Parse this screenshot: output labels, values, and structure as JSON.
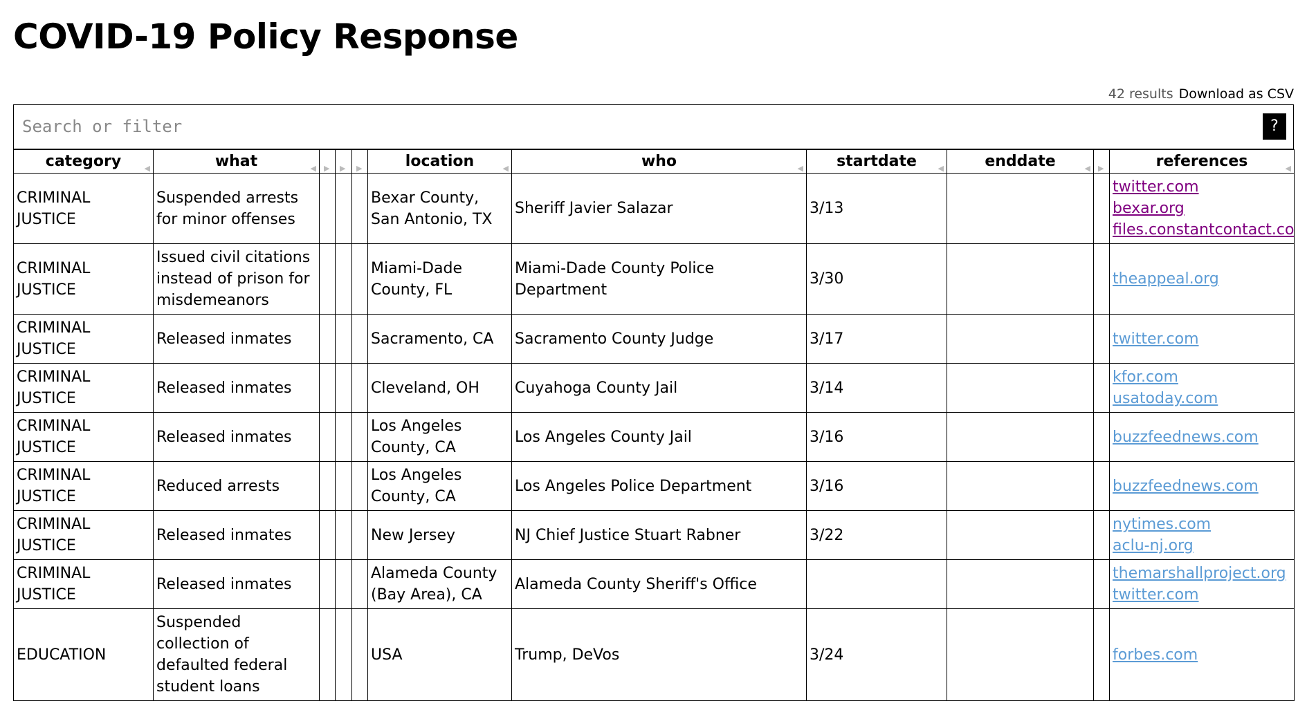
{
  "header": {
    "title": "COVID-19 Policy Response"
  },
  "toolbar": {
    "count": "42 results",
    "download": "Download as CSV"
  },
  "search": {
    "placeholder": "Search or filter",
    "help": "?"
  },
  "table": {
    "columns": [
      "category",
      "what",
      "location",
      "who",
      "startdate",
      "enddate",
      "references"
    ],
    "rows": [
      [
        "CRIMINAL JUSTICE",
        "Suspended arrests for minor offenses",
        "Bexar County, San Antonio, TX",
        "Sheriff Javier Salazar",
        "3/13",
        null,
        [
          {
            "text": "twitter.com",
            "visited": true
          },
          {
            "text": "bexar.org",
            "visited": true
          },
          {
            "text": "files.constantcontact.com",
            "visited": true
          }
        ]
      ],
      [
        "CRIMINAL JUSTICE",
        "Issued civil citations instead of prison for misdemeanors",
        "Miami-Dade County, FL",
        "Miami-Dade County Police Department",
        "3/30",
        null,
        [
          {
            "text": "theappeal.org",
            "visited": false
          }
        ]
      ],
      [
        "CRIMINAL JUSTICE",
        "Released inmates",
        "Sacramento, CA",
        "Sacramento County Judge",
        "3/17",
        null,
        [
          {
            "text": "twitter.com",
            "visited": false
          }
        ]
      ],
      [
        "CRIMINAL JUSTICE",
        "Released inmates",
        "Cleveland, OH",
        "Cuyahoga County Jail",
        "3/14",
        null,
        [
          {
            "text": "kfor.com",
            "visited": false
          },
          {
            "text": "usatoday.com",
            "visited": false
          }
        ]
      ],
      [
        "CRIMINAL JUSTICE",
        "Released inmates",
        "Los Angeles County, CA",
        "Los Angeles County Jail",
        "3/16",
        null,
        [
          {
            "text": "buzzfeednews.com",
            "visited": false
          }
        ]
      ],
      [
        "CRIMINAL JUSTICE",
        "Reduced arrests",
        "Los Angeles County, CA",
        "Los Angeles Police Department",
        "3/16",
        null,
        [
          {
            "text": "buzzfeednews.com",
            "visited": false
          }
        ]
      ],
      [
        "CRIMINAL JUSTICE",
        "Released inmates",
        "New Jersey",
        "NJ Chief Justice Stuart Rabner",
        "3/22",
        null,
        [
          {
            "text": "nytimes.com",
            "visited": false
          },
          {
            "text": "aclu-nj.org",
            "visited": false
          }
        ]
      ],
      [
        "CRIMINAL JUSTICE",
        "Released inmates",
        "Alameda County (Bay Area), CA",
        "Alameda County Sheriff's Office",
        null,
        null,
        [
          {
            "text": "themarshallproject.org",
            "visited": false
          },
          {
            "text": "twitter.com",
            "visited": false
          }
        ]
      ],
      [
        "EDUCATION",
        "Suspended collection of defaulted federal student loans",
        "USA",
        "Trump, DeVos",
        "3/24",
        null,
        [
          {
            "text": "forbes.com",
            "visited": false
          }
        ]
      ]
    ]
  }
}
